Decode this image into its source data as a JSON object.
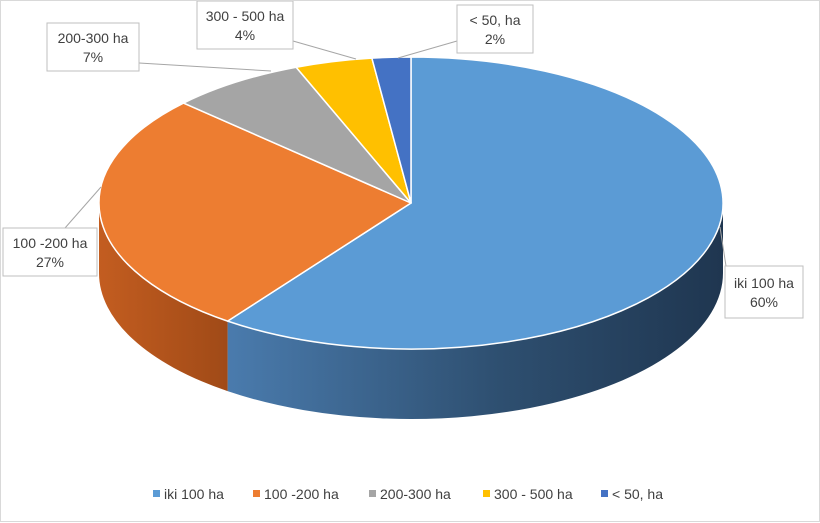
{
  "chart_data": {
    "type": "pie",
    "style": "3d",
    "title": "",
    "legend_position": "bottom",
    "categories": [
      "iki 100 ha",
      "100 -200 ha",
      "200-300 ha",
      "300 - 500 ha",
      "<  50, ha"
    ],
    "values": [
      60,
      27,
      7,
      4,
      2
    ],
    "value_labels": [
      "60%",
      "27%",
      "7%",
      "4%",
      "2%"
    ],
    "colors": [
      "#5b9bd5",
      "#ed7d31",
      "#a5a5a5",
      "#ffc000",
      "#4472c4"
    ]
  }
}
